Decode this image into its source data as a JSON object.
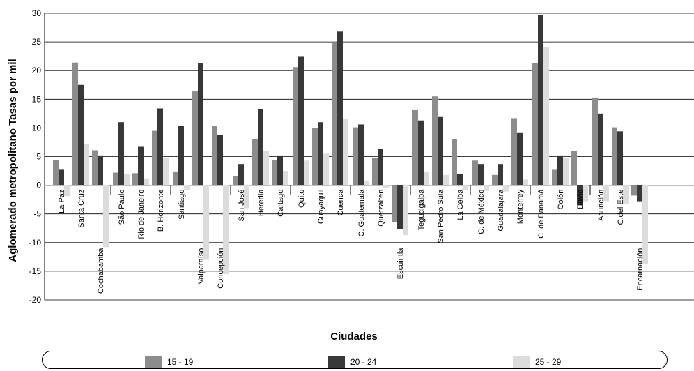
{
  "chart_data": {
    "type": "bar",
    "ylabel": "Aglomerado metropolitano Tasas por mil",
    "xlabel": "Ciudades",
    "ylim": [
      -20,
      30
    ],
    "yticks": [
      30,
      25,
      20,
      15,
      10,
      5,
      0,
      -5,
      -10,
      -15,
      -20
    ],
    "grid": true,
    "legend_position": "bottom",
    "categories": [
      "La Paz",
      "Santa Cruz",
      "Cochabamba",
      "São Paulo",
      "Rio de Janeiro",
      "B. Horizonte",
      "Santiago",
      "Valparaíso",
      "Concepción",
      "San José",
      "Heredia",
      "Cartago",
      "Quito",
      "Guayaquil",
      "Cuenca",
      "C. Guatemala",
      "Quetzalten",
      "Escuintla",
      "Tegucigalpa",
      "San Pedro Sula",
      "La Ceiba",
      "C. de México",
      "Guadalajara",
      "Monterrey",
      "C. de Panamá",
      "Colón",
      "David",
      "Asunción",
      "C.del Este",
      "Encarnación"
    ],
    "label_low": [
      false,
      false,
      true,
      false,
      false,
      false,
      false,
      true,
      true,
      false,
      false,
      false,
      false,
      false,
      false,
      false,
      false,
      true,
      false,
      false,
      false,
      false,
      false,
      false,
      false,
      false,
      false,
      false,
      false,
      true
    ],
    "series": [
      {
        "name": "15 - 19",
        "color": "#8c8c8c",
        "values": [
          4.4,
          21.4,
          6.1,
          2.2,
          2.1,
          9.5,
          2.4,
          16.5,
          10.3,
          1.6,
          8.0,
          4.4,
          20.6,
          10.0,
          25.0,
          10.1,
          4.7,
          -6.5,
          13.1,
          15.5,
          8.0,
          4.3,
          1.8,
          11.7,
          21.3,
          2.7,
          6.0,
          15.3,
          10.1,
          -1.8
        ]
      },
      {
        "name": "20 - 24",
        "color": "#383838",
        "values": [
          2.7,
          17.5,
          5.2,
          11.0,
          6.7,
          13.4,
          10.4,
          21.3,
          8.8,
          3.7,
          13.3,
          5.2,
          22.4,
          11.0,
          26.8,
          10.6,
          6.3,
          -7.7,
          11.3,
          11.9,
          2.0,
          3.7,
          3.7,
          9.1,
          29.7,
          5.2,
          -3.5,
          12.5,
          9.4,
          -2.8
        ]
      },
      {
        "name": "25 - 29",
        "color": "#dcdcdc",
        "values": [
          -1.9,
          7.2,
          -10.8,
          2.0,
          1.2,
          4.8,
          -0.8,
          -13.0,
          -15.5,
          -4.0,
          6.0,
          2.5,
          4.3,
          5.5,
          11.5,
          0.8,
          -0.4,
          -8.7,
          2.4,
          1.8,
          -0.9,
          -1.0,
          -1.1,
          1.0,
          24.1,
          4.8,
          -2.8,
          -2.8,
          -3.2,
          -13.8
        ]
      }
    ]
  }
}
